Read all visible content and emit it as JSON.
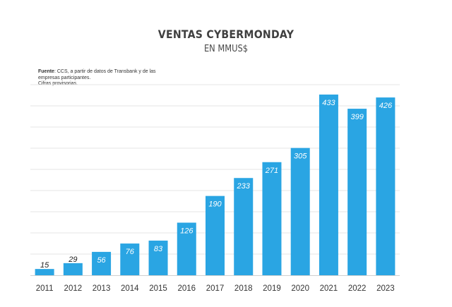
{
  "chart_data": {
    "type": "bar",
    "title": "VENTAS CYBERMONDAY",
    "subtitle": "EN MMUS$",
    "source_label": "Fuente",
    "source_lines": [
      ": CCS, a partir de datos de Transbank y de las",
      "empresas participantes.",
      "Cifras provisorias."
    ],
    "categories": [
      "2011",
      "2012",
      "2013",
      "2014",
      "2015",
      "2016",
      "2017",
      "2018",
      "2019",
      "2020",
      "2021",
      "2022",
      "2023"
    ],
    "values": [
      15,
      29,
      56,
      76,
      83,
      126,
      190,
      233,
      271,
      305,
      433,
      399,
      426
    ],
    "ylim": [
      0,
      460
    ],
    "grid": true,
    "bar_color": "#2aa5e3",
    "xlabel": "",
    "ylabel": ""
  }
}
